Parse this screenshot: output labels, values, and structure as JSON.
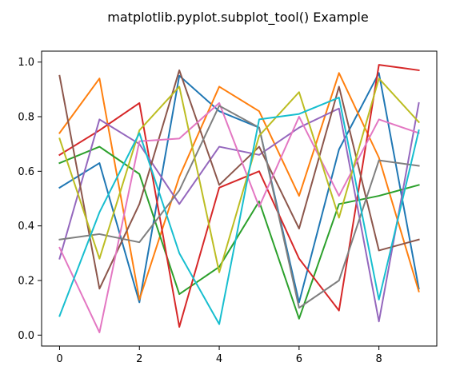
{
  "chart_data": {
    "type": "line",
    "title": "matplotlib.pyplot.subplot_tool() Example",
    "xlabel": "",
    "ylabel": "",
    "xlim": [
      -0.45,
      9.45
    ],
    "ylim": [
      -0.04,
      1.04
    ],
    "x": [
      0,
      1,
      2,
      3,
      4,
      5,
      6,
      7,
      8,
      9
    ],
    "xticks": [
      0,
      2,
      4,
      6,
      8
    ],
    "xtick_labels": [
      "0",
      "2",
      "4",
      "6",
      "8"
    ],
    "yticks": [
      0.0,
      0.2,
      0.4,
      0.6,
      0.8,
      1.0
    ],
    "ytick_labels": [
      "0.0",
      "0.2",
      "0.4",
      "0.6",
      "0.8",
      "1.0"
    ],
    "grid": false,
    "series": [
      {
        "color": "#1f77b4",
        "values": [
          0.54,
          0.63,
          0.12,
          0.95,
          0.82,
          0.76,
          0.12,
          0.68,
          0.96,
          0.17
        ]
      },
      {
        "color": "#ff7f0e",
        "values": [
          0.74,
          0.94,
          0.13,
          0.58,
          0.91,
          0.82,
          0.51,
          0.96,
          0.65,
          0.16
        ]
      },
      {
        "color": "#2ca02c",
        "values": [
          0.63,
          0.69,
          0.59,
          0.15,
          0.25,
          0.49,
          0.06,
          0.48,
          0.51,
          0.55
        ]
      },
      {
        "color": "#d62728",
        "values": [
          0.66,
          0.75,
          0.85,
          0.03,
          0.54,
          0.6,
          0.28,
          0.09,
          0.99,
          0.97
        ]
      },
      {
        "color": "#9467bd",
        "values": [
          0.28,
          0.79,
          0.7,
          0.48,
          0.69,
          0.66,
          0.76,
          0.83,
          0.05,
          0.85
        ]
      },
      {
        "color": "#8c564b",
        "values": [
          0.95,
          0.17,
          0.48,
          0.97,
          0.55,
          0.69,
          0.39,
          0.91,
          0.31,
          0.35
        ]
      },
      {
        "color": "#e377c2",
        "values": [
          0.32,
          0.01,
          0.71,
          0.72,
          0.85,
          0.47,
          0.8,
          0.51,
          0.79,
          0.74
        ]
      },
      {
        "color": "#7f7f7f",
        "values": [
          0.35,
          0.37,
          0.34,
          0.53,
          0.84,
          0.76,
          0.1,
          0.2,
          0.64,
          0.62
        ]
      },
      {
        "color": "#bcbd22",
        "values": [
          0.72,
          0.28,
          0.75,
          0.91,
          0.23,
          0.73,
          0.89,
          0.43,
          0.94,
          0.78
        ]
      },
      {
        "color": "#17becf",
        "values": [
          0.07,
          0.45,
          0.74,
          0.3,
          0.04,
          0.79,
          0.81,
          0.87,
          0.13,
          0.75
        ]
      }
    ]
  }
}
